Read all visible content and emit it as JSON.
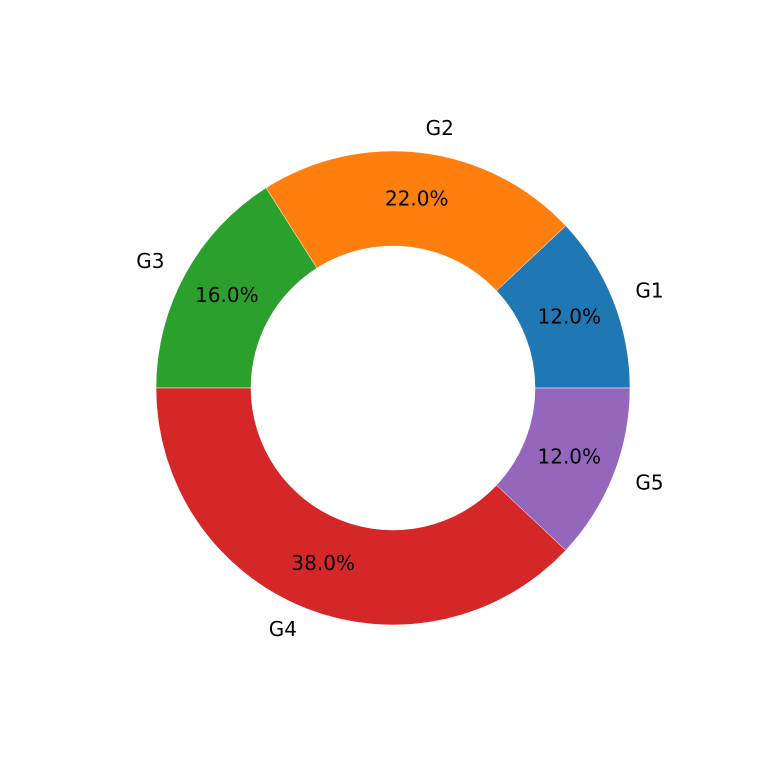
{
  "chart_data": {
    "type": "donut",
    "categories": [
      "G1",
      "G2",
      "G3",
      "G4",
      "G5"
    ],
    "values": [
      12,
      22,
      16,
      38,
      12
    ],
    "value_labels": [
      "12.0%",
      "22.0%",
      "16.0%",
      "38.0%",
      "12.0%"
    ],
    "colors": [
      "#1f77b4",
      "#ff7f0e",
      "#2ca02c",
      "#d62728",
      "#9467bd"
    ]
  }
}
